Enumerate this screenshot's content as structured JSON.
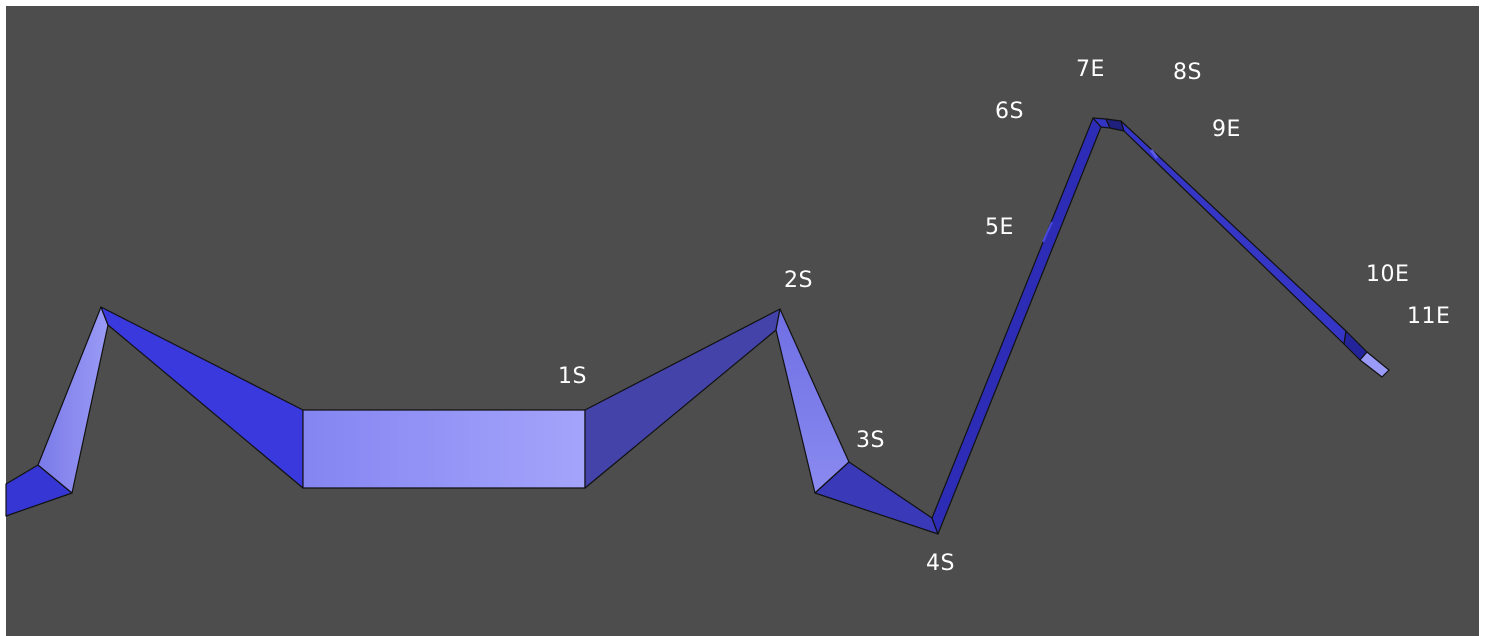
{
  "viewport": {
    "background_color": "#4d4d4d",
    "frame_color": "#ffffff"
  },
  "palette": {
    "light": "#8b8bf2",
    "medium": "#3a3adc",
    "dark": "#2a2ab8",
    "darkest": "#1e1e8a",
    "slate": "#4242a8",
    "outline": "#111111"
  },
  "labels": {
    "s1": "1S",
    "s2": "2S",
    "s3": "3S",
    "s4": "4S",
    "s5": "5E",
    "s6": "6S",
    "s7": "7E",
    "s8": "8S",
    "s9": "9E",
    "s10": "10E",
    "s11": "11E"
  }
}
